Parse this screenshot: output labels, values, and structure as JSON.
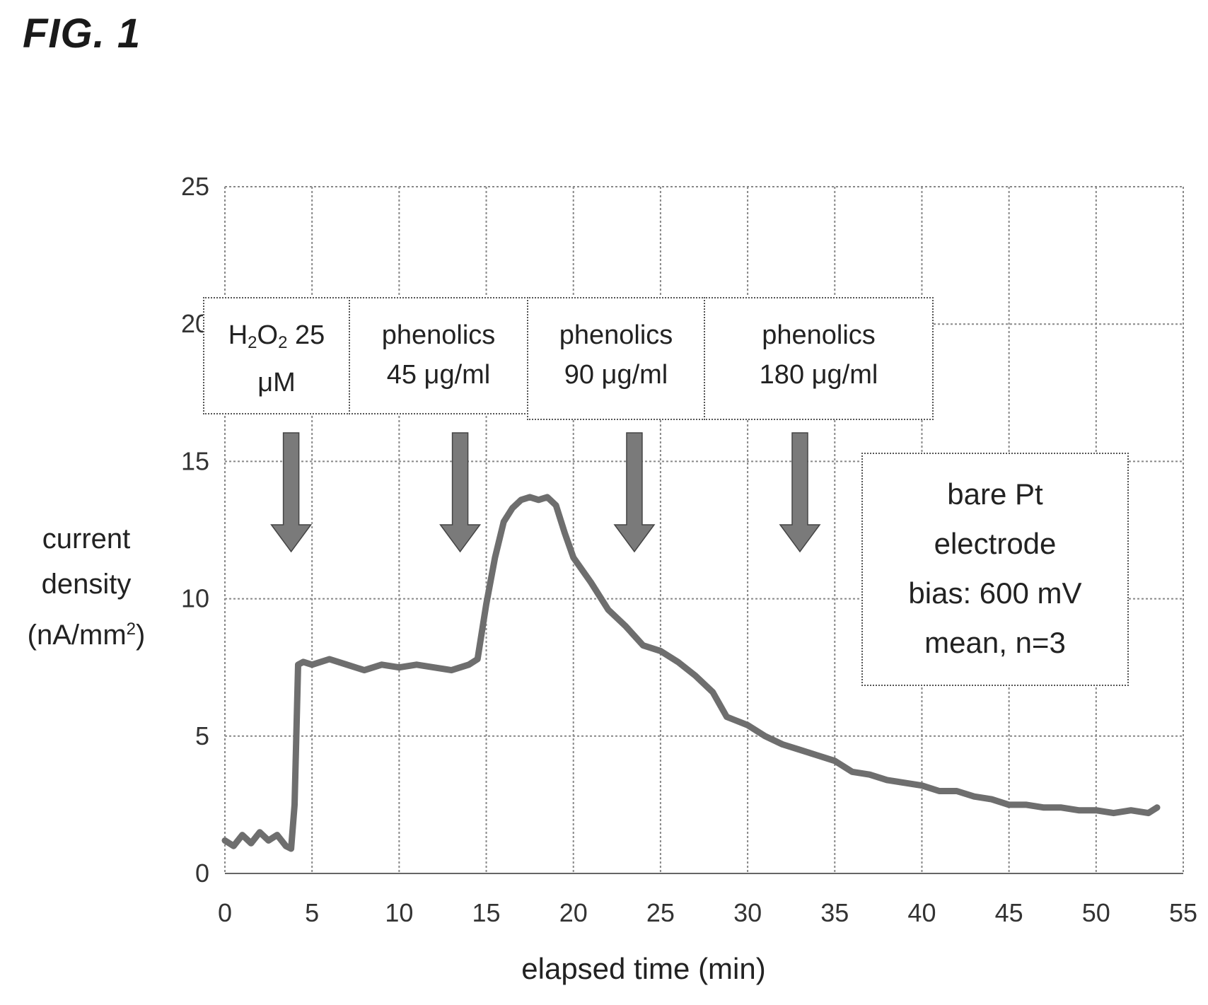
{
  "figure": {
    "title": "FIG. 1"
  },
  "chart_data": {
    "type": "line",
    "xlabel": "elapsed time (min)",
    "ylabel_lines": [
      "current",
      "density",
      "(nA/mm",
      "2",
      ")"
    ],
    "xlim": [
      0,
      55
    ],
    "ylim": [
      0,
      25
    ],
    "xticks": [
      "0",
      "5",
      "10",
      "15",
      "20",
      "25",
      "30",
      "35",
      "40",
      "45",
      "50",
      "55"
    ],
    "yticks": [
      "0",
      "5",
      "10",
      "15",
      "20",
      "25"
    ],
    "grid": true,
    "series": [
      {
        "x": [
          0,
          0.5,
          1,
          1.5,
          2,
          2.5,
          3,
          3.5,
          3.8,
          4.0,
          4.2,
          4.5,
          5,
          6,
          7,
          8,
          9,
          10,
          11,
          12,
          13,
          14,
          14.5,
          15,
          15.5,
          16,
          16.5,
          17,
          17.5,
          18,
          18.5,
          19,
          19.5,
          20,
          21,
          22,
          23,
          24,
          25,
          26,
          27,
          28,
          28.8,
          29.2,
          30,
          31,
          32,
          33,
          34,
          35,
          36,
          37,
          38,
          39,
          40,
          41,
          42,
          43,
          44,
          45,
          46,
          47,
          48,
          49,
          50,
          51,
          52,
          53,
          53.5
        ],
        "y": [
          1.2,
          1.0,
          1.4,
          1.1,
          1.5,
          1.2,
          1.4,
          1.0,
          0.9,
          2.5,
          7.6,
          7.7,
          7.6,
          7.8,
          7.6,
          7.4,
          7.6,
          7.5,
          7.6,
          7.5,
          7.4,
          7.6,
          7.8,
          9.8,
          11.5,
          12.8,
          13.3,
          13.6,
          13.7,
          13.6,
          13.7,
          13.4,
          12.4,
          11.5,
          10.6,
          9.6,
          9.0,
          8.3,
          8.1,
          7.7,
          7.2,
          6.6,
          5.7,
          5.6,
          5.4,
          5.0,
          4.7,
          4.5,
          4.3,
          4.1,
          3.7,
          3.6,
          3.4,
          3.3,
          3.2,
          3.0,
          3.0,
          2.8,
          2.7,
          2.5,
          2.5,
          2.4,
          2.4,
          2.3,
          2.3,
          2.2,
          2.3,
          2.2,
          2.4
        ]
      }
    ],
    "annotations": [
      {
        "lines": [
          "H",
          "2",
          "O",
          "2",
          " 25",
          "μM"
        ],
        "arrow_x": 3.8
      },
      {
        "lines": [
          "phenolics",
          "45 μg/ml"
        ],
        "arrow_x": 13.5
      },
      {
        "lines": [
          "phenolics",
          "90 μg/ml"
        ],
        "arrow_x": 23.5
      },
      {
        "lines": [
          "phenolics",
          "180 μg/ml"
        ],
        "arrow_x": 33
      }
    ],
    "info_box": [
      "bare Pt",
      "electrode",
      "bias: 600 mV",
      "mean, n=3"
    ]
  },
  "colors": {
    "line": "#6e6e6e",
    "grid": "#888888",
    "arrow": "#7a7a7a"
  }
}
